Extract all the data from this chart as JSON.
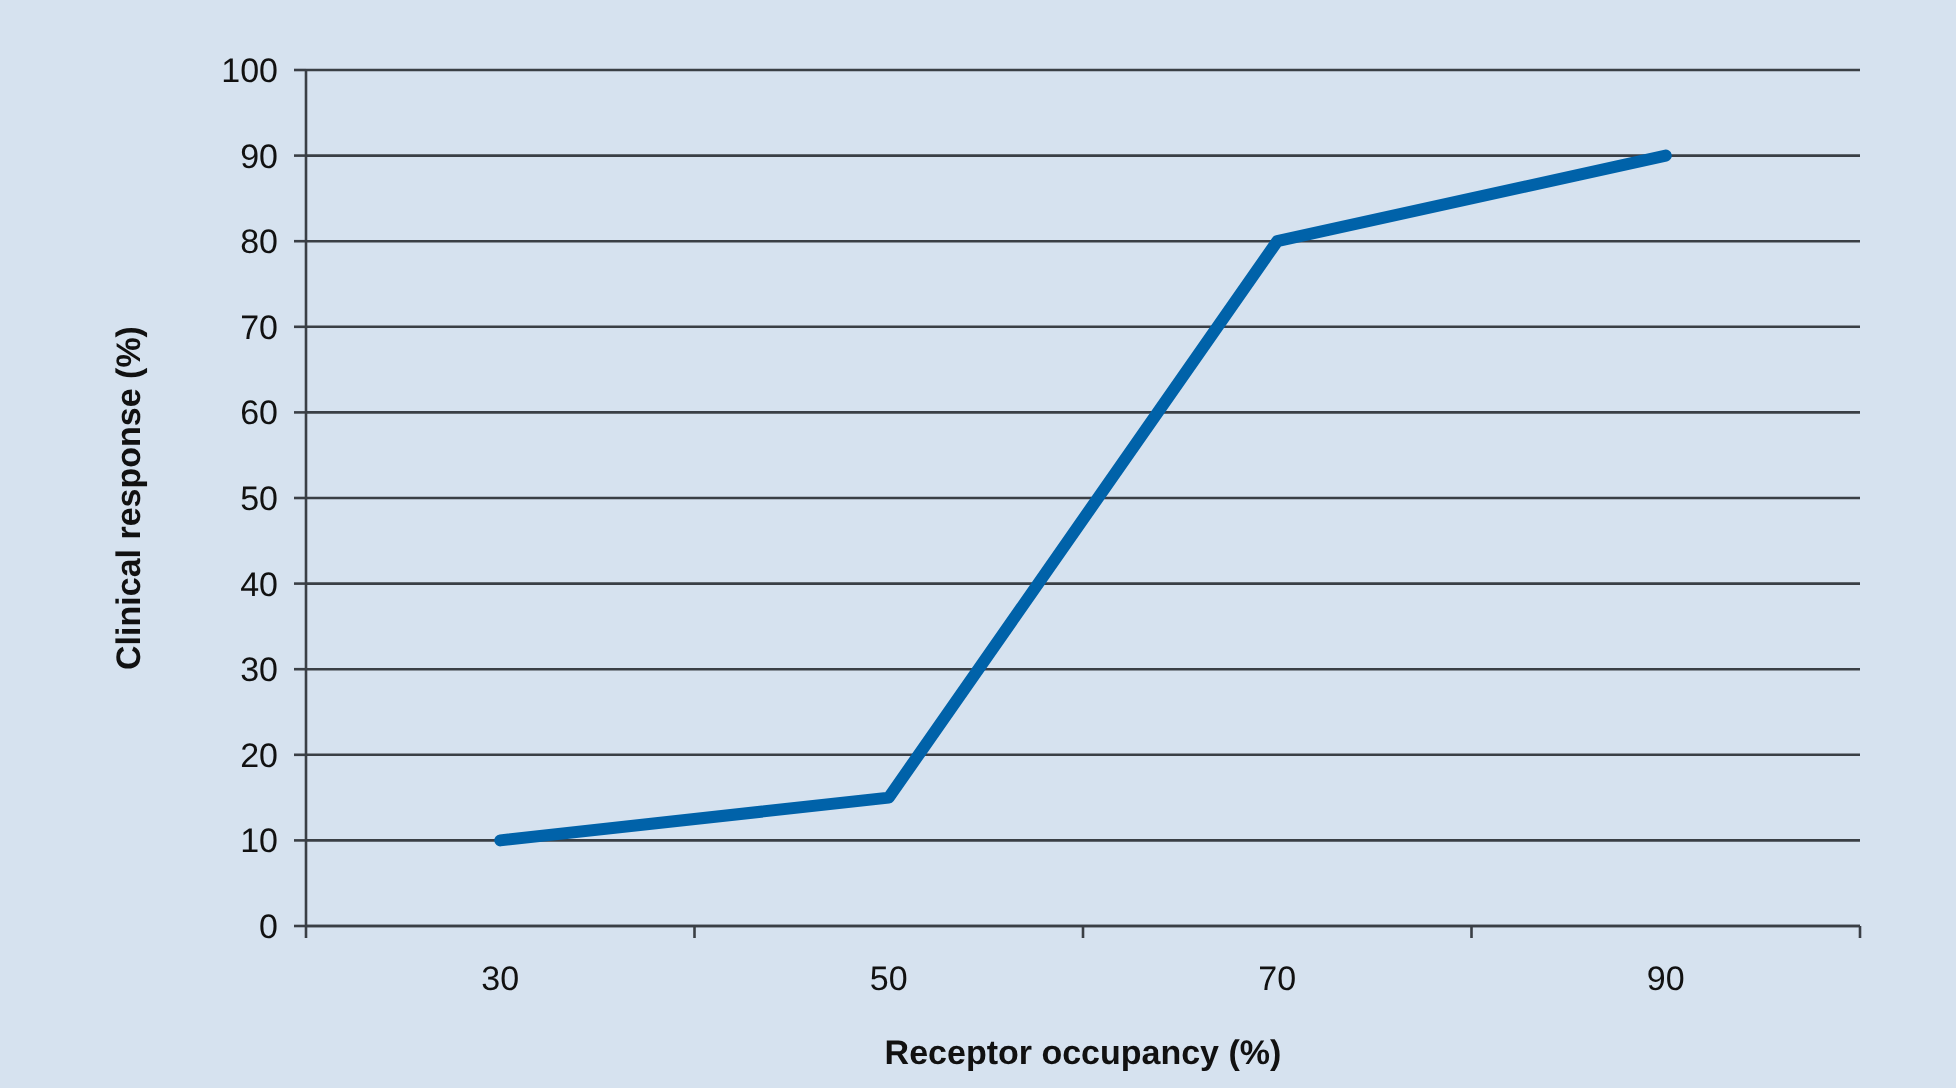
{
  "chart_data": {
    "type": "line",
    "xlabel": "Receptor occupancy (%)",
    "ylabel": "Clinical response (%)",
    "categories": [
      "30",
      "50",
      "70",
      "90"
    ],
    "series": [
      {
        "color": "#0062a9",
        "values": [
          10,
          15,
          80,
          90
        ]
      }
    ],
    "ylim": [
      0,
      100
    ],
    "yticks": [
      0,
      10,
      20,
      30,
      40,
      50,
      60,
      70,
      80,
      90,
      100
    ],
    "grid": "y",
    "marker": "none",
    "line_style": "solid"
  }
}
